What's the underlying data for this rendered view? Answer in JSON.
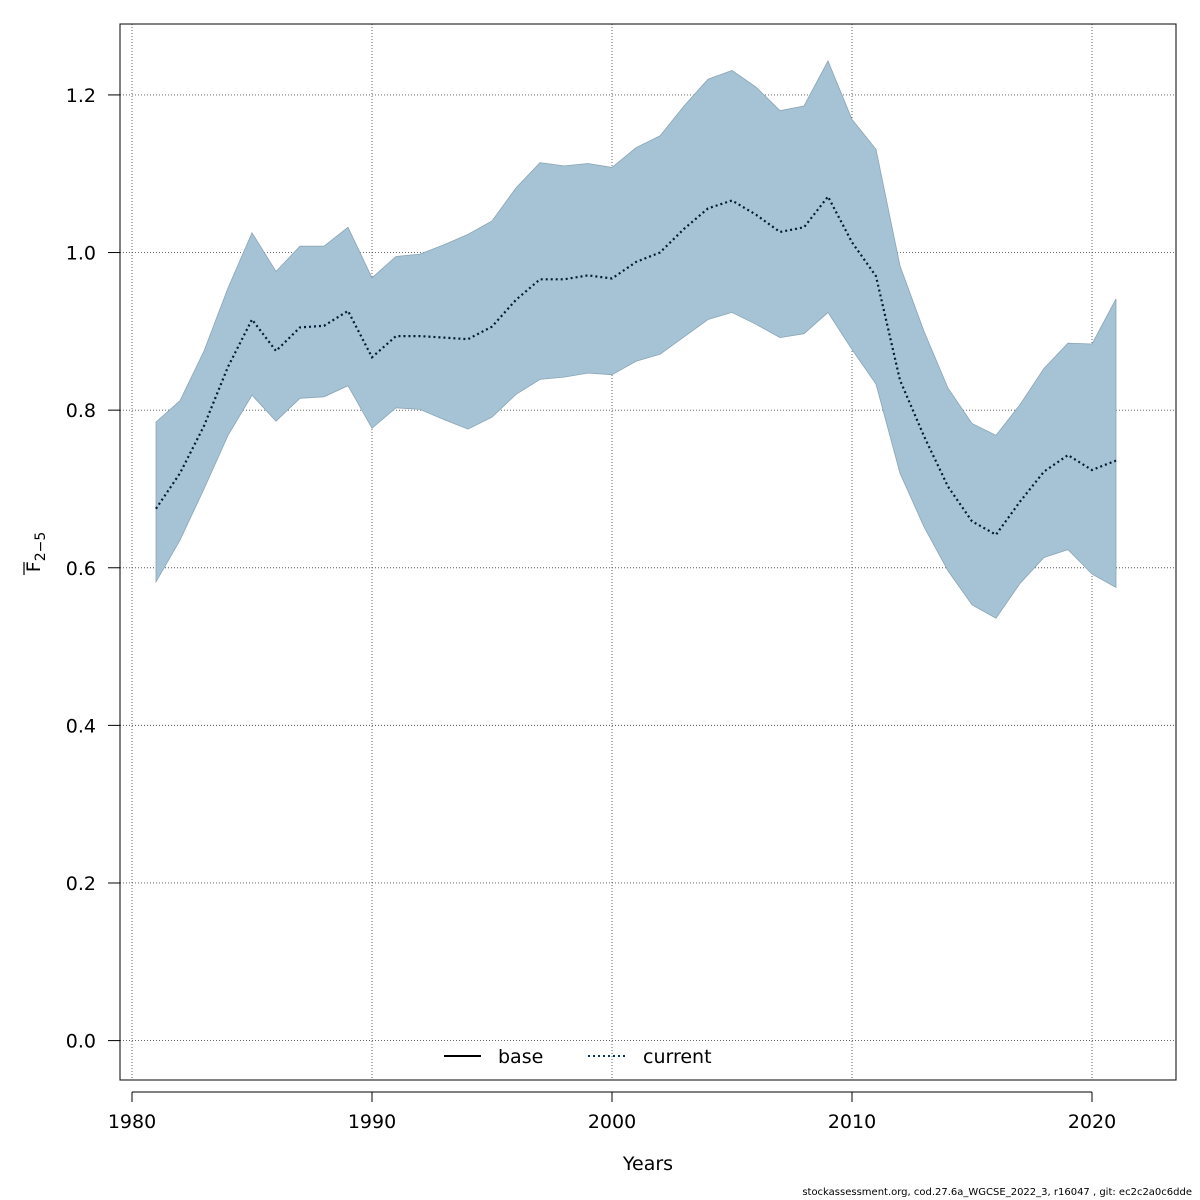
{
  "chart_data": {
    "type": "line",
    "xlabel": "Years",
    "ylabel_main": "F",
    "ylabel_sub": "2−5",
    "xlim": [
      1979.5,
      2023.5
    ],
    "ylim": [
      -0.05,
      1.29
    ],
    "xticks": [
      1980,
      1990,
      2000,
      2010,
      2020
    ],
    "yticks": [
      0.0,
      0.2,
      0.4,
      0.6,
      0.8,
      1.0,
      1.2
    ],
    "ytick_labels": [
      "0.0",
      "0.2",
      "0.4",
      "0.6",
      "0.8",
      "1.0",
      "1.2"
    ],
    "xtick_labels": [
      "1980",
      "1990",
      "2000",
      "2010",
      "2020"
    ],
    "grid": true,
    "legend_position": "bottom-center",
    "legend": [
      {
        "label": "base",
        "style": "solid",
        "color": "#000000"
      },
      {
        "label": "current",
        "style": "dotted",
        "color": "#003a63"
      }
    ],
    "band_color": "#a5c3d4",
    "x": [
      1981,
      1982,
      1983,
      1984,
      1985,
      1986,
      1987,
      1988,
      1989,
      1990,
      1991,
      1992,
      1993,
      1994,
      1995,
      1996,
      1997,
      1998,
      1999,
      2000,
      2001,
      2002,
      2003,
      2004,
      2005,
      2006,
      2007,
      2008,
      2009,
      2010,
      2011,
      2012,
      2013,
      2014,
      2015,
      2016,
      2017,
      2018,
      2019,
      2020,
      2021
    ],
    "series": [
      {
        "name": "current",
        "values": [
          0.675,
          0.72,
          0.78,
          0.855,
          0.915,
          0.875,
          0.905,
          0.907,
          0.926,
          0.867,
          0.894,
          0.894,
          0.892,
          0.89,
          0.906,
          0.94,
          0.966,
          0.966,
          0.971,
          0.967,
          0.988,
          1.0,
          1.03,
          1.056,
          1.066,
          1.048,
          1.026,
          1.032,
          1.071,
          1.013,
          0.97,
          0.838,
          0.767,
          0.703,
          0.659,
          0.642,
          0.684,
          0.722,
          0.743,
          0.724,
          0.736
        ]
      }
    ],
    "band": {
      "upper": [
        0.785,
        0.812,
        0.875,
        0.955,
        1.025,
        0.976,
        1.008,
        1.008,
        1.032,
        0.968,
        0.995,
        0.998,
        1.01,
        1.023,
        1.04,
        1.082,
        1.114,
        1.11,
        1.113,
        1.108,
        1.133,
        1.148,
        1.186,
        1.22,
        1.231,
        1.21,
        1.18,
        1.186,
        1.243,
        1.169,
        1.131,
        0.983,
        0.9,
        0.828,
        0.783,
        0.768,
        0.807,
        0.853,
        0.885,
        0.884,
        0.941
      ],
      "lower": [
        0.582,
        0.635,
        0.7,
        0.768,
        0.819,
        0.786,
        0.815,
        0.817,
        0.831,
        0.777,
        0.803,
        0.801,
        0.788,
        0.776,
        0.791,
        0.82,
        0.839,
        0.842,
        0.847,
        0.845,
        0.862,
        0.871,
        0.893,
        0.915,
        0.924,
        0.909,
        0.892,
        0.897,
        0.924,
        0.877,
        0.833,
        0.72,
        0.652,
        0.596,
        0.553,
        0.536,
        0.58,
        0.613,
        0.623,
        0.592,
        0.575
      ]
    }
  },
  "footer": {
    "text": "stockassessment.org, cod.27.6a_WGCSE_2022_3, r16047 , git: ec2c2a0c6dde"
  }
}
